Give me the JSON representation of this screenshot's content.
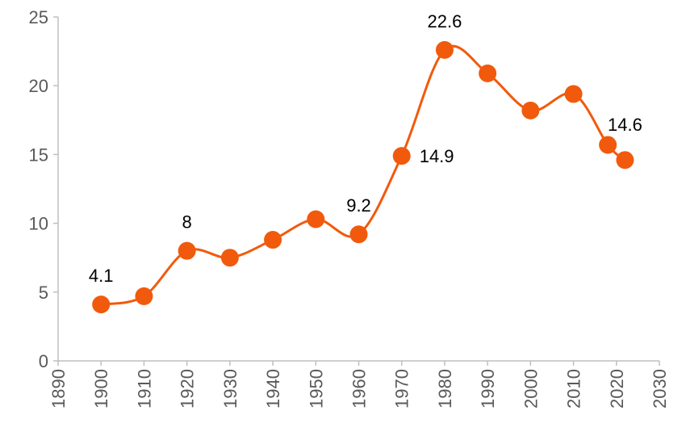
{
  "chart_data": {
    "type": "line",
    "x": [
      1900,
      1910,
      1920,
      1930,
      1940,
      1950,
      1960,
      1970,
      1980,
      1990,
      2000,
      2010,
      2018,
      2022
    ],
    "series": [
      {
        "color": "#f15a0c",
        "values": [
          4.1,
          4.7,
          8,
          7.5,
          8.8,
          10.3,
          9.2,
          14.9,
          22.6,
          20.9,
          18.2,
          19.4,
          15.7,
          14.6
        ],
        "value_labels": [
          "4.1",
          null,
          "8",
          null,
          null,
          null,
          "9.2",
          "14.9",
          "22.6",
          null,
          null,
          null,
          null,
          "14.6"
        ]
      }
    ],
    "xlim": [
      1890,
      2030
    ],
    "xticks": [
      1890,
      1900,
      1910,
      1920,
      1930,
      1940,
      1950,
      1960,
      1970,
      1980,
      1990,
      2000,
      2010,
      2020,
      2030
    ],
    "ylim": [
      0,
      25
    ],
    "yticks": [
      0,
      5,
      10,
      15,
      20,
      25
    ],
    "grid": false,
    "smooth": true
  }
}
